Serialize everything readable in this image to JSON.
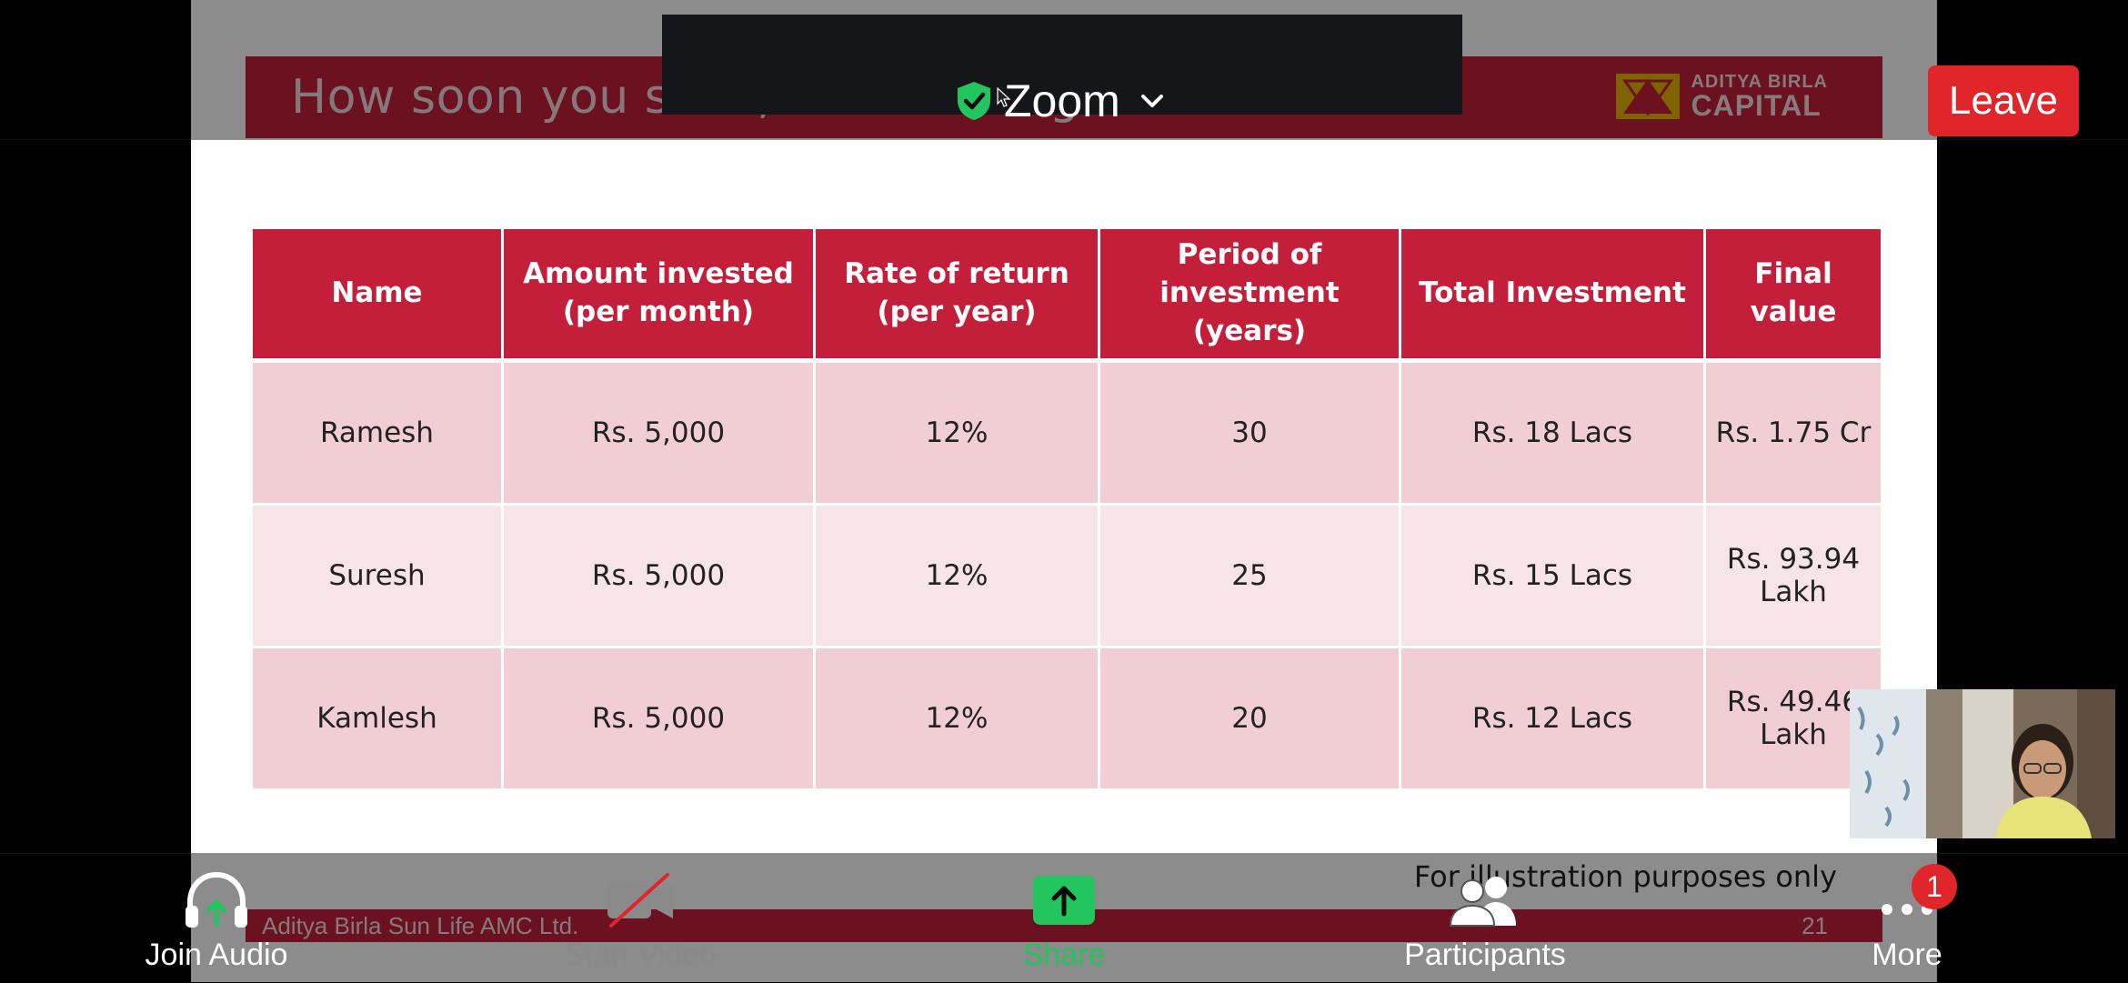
{
  "slide": {
    "title": "How soon you start, makes a big difference",
    "brand_line1": "ADITYA BIRLA",
    "brand_line2": "CAPITAL",
    "table": {
      "headers": [
        "Name",
        "Amount invested\n(per month)",
        "Rate of return\n(per year)",
        "Period of\ninvestment\n(years)",
        "Total Investment",
        "Final value"
      ],
      "rows": [
        [
          "Ramesh",
          "Rs. 5,000",
          "12%",
          "30",
          "Rs. 18 Lacs",
          "Rs. 1.75 Cr"
        ],
        [
          "Suresh",
          "Rs. 5,000",
          "12%",
          "25",
          "Rs. 15 Lacs",
          "Rs. 93.94 Lakh"
        ],
        [
          "Kamlesh",
          "Rs. 5,000",
          "12%",
          "20",
          "Rs. 12 Lacs",
          "Rs. 49.46 Lakh"
        ]
      ]
    },
    "note": "For illustration purposes only",
    "footer_left": "Aditya Birla Sun Life AMC Ltd.",
    "page_number": "21"
  },
  "meeting": {
    "title": "Zoom",
    "leave_label": "Leave"
  },
  "toolbar": {
    "join_audio": "Join Audio",
    "start_video": "Start Video",
    "share": "Share",
    "participants": "Participants",
    "more": "More",
    "more_badge": "1"
  },
  "colors": {
    "slide_red": "#c41f3a",
    "leave_red": "#e0252b",
    "share_green": "#22c55e"
  }
}
